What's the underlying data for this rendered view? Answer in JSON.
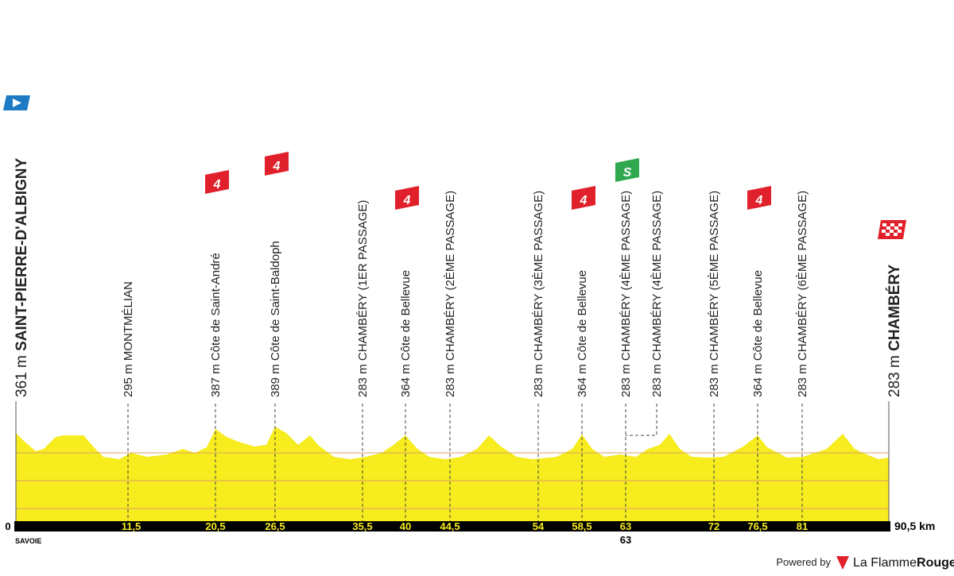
{
  "start": {
    "altitude": "361 m",
    "name": "SAINT-PIERRE-D'ALBIGNY"
  },
  "finish": {
    "altitude": "283 m",
    "name": "CHAMBÉRY"
  },
  "waypoints": [
    {
      "label": "295 m MONTMÉLIAN"
    },
    {
      "label": "387 m Côte de Saint-André",
      "badge": "4"
    },
    {
      "label": "389 m Côte de Saint-Baldoph",
      "badge": "4"
    },
    {
      "label": "283 m CHAMBÉRY (1ER PASSAGE)"
    },
    {
      "label": "364 m Côte de Bellevue",
      "badge": "4"
    },
    {
      "label": "283 m CHAMBÉRY (2ÈME PASSAGE)"
    },
    {
      "label": "283 m CHAMBÉRY (3ÈME PASSAGE)"
    },
    {
      "label": "364 m Côte de Bellevue",
      "badge": "4"
    },
    {
      "label": "283 m CHAMBÉRY (4ÈME PASSAGE)",
      "badge": "S"
    },
    {
      "label": "283 m CHAMBÉRY (4ÈME PASSAGE)"
    },
    {
      "label": "283 m CHAMBÉRY (5ÈME PASSAGE)"
    },
    {
      "label": "364 m Côte de Bellevue",
      "badge": "4"
    },
    {
      "label": "283 m CHAMBÉRY (6ÈME PASSAGE)"
    }
  ],
  "km_marks": [
    "0",
    "11,5",
    "20,5",
    "26,5",
    "35,5",
    "40",
    "44,5",
    "54",
    "58,5",
    "63",
    "72",
    "76,5",
    "81"
  ],
  "km_total": "90,5 km",
  "km_below": "63",
  "region": "SAVOIE",
  "footer": {
    "powered_by": "Powered by",
    "brand_a": "La Flamme",
    "brand_b": "Rouge"
  }
}
